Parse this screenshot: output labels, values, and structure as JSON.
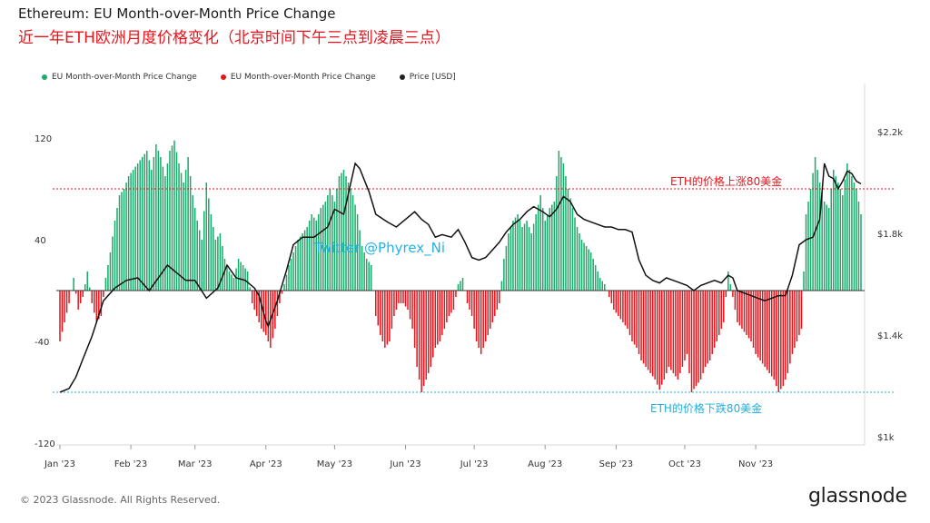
{
  "header": {
    "title": "Ethereum: EU Month-over-Month Price Change",
    "subtitle": "近一年ETH欧洲月度价格变化（北京时间下午三点到凌晨三点）"
  },
  "footer": {
    "copyright": "© 2023 Glassnode. All Rights Reserved.",
    "logo": "glassnode"
  },
  "colors": {
    "positive": "#1aaa6a",
    "negative": "#e8141b",
    "price": "#111111",
    "upper_line": "#e8141b",
    "lower_line": "#1fb0e0",
    "watermark": "#22b3e6"
  },
  "chart_data": {
    "type": "bar",
    "legend": [
      {
        "label": "EU Month-over-Month Price Change",
        "color": "#1aaa6a"
      },
      {
        "label": "EU Month-over-Month Price Change",
        "color": "#e8141b"
      },
      {
        "label": "Price [USD]",
        "color": "#222222"
      }
    ],
    "legend_placement": "top-left",
    "ylim_left": [
      -120,
      120
    ],
    "yticks_left": [
      "120",
      "40",
      "-40",
      "-120"
    ],
    "ylim_right": [
      1000,
      2200
    ],
    "yticks_right": [
      "$2.2k",
      "$1.8k",
      "$1.4k",
      "$1k"
    ],
    "x_labels": [
      "Jan '23",
      "Feb '23",
      "Mar '23",
      "Apr '23",
      "May '23",
      "Jun '23",
      "Jul '23",
      "Aug '23",
      "Sep '23",
      "Oct '23",
      "Nov '23"
    ],
    "x_range_days": [
      1,
      351
    ],
    "annotations": [
      {
        "text": "ETH的价格上涨80美金",
        "value": 80,
        "color": "#e8141b"
      },
      {
        "text": "ETH的价格下跌80美金",
        "value": -80,
        "color": "#1fb0e0"
      }
    ],
    "watermark": "Twitter @Phyrex_Ni",
    "series": [
      {
        "name": "EU Month-over-Month Price Change",
        "anchors": [
          [
            1,
            -40
          ],
          [
            3,
            -25
          ],
          [
            5,
            -10
          ],
          [
            7,
            10
          ],
          [
            9,
            -15
          ],
          [
            11,
            -5
          ],
          [
            13,
            15
          ],
          [
            15,
            -10
          ],
          [
            17,
            -25
          ],
          [
            19,
            -20
          ],
          [
            21,
            10
          ],
          [
            23,
            30
          ],
          [
            25,
            55
          ],
          [
            27,
            75
          ],
          [
            29,
            80
          ],
          [
            31,
            90
          ],
          [
            33,
            95
          ],
          [
            35,
            100
          ],
          [
            37,
            105
          ],
          [
            39,
            110
          ],
          [
            41,
            95
          ],
          [
            43,
            115
          ],
          [
            45,
            105
          ],
          [
            47,
            90
          ],
          [
            49,
            110
          ],
          [
            51,
            118
          ],
          [
            53,
            100
          ],
          [
            55,
            85
          ],
          [
            57,
            105
          ],
          [
            59,
            75
          ],
          [
            61,
            55
          ],
          [
            63,
            40
          ],
          [
            65,
            85
          ],
          [
            67,
            60
          ],
          [
            69,
            40
          ],
          [
            71,
            45
          ],
          [
            73,
            25
          ],
          [
            75,
            15
          ],
          [
            77,
            10
          ],
          [
            79,
            25
          ],
          [
            81,
            20
          ],
          [
            83,
            15
          ],
          [
            85,
            -10
          ],
          [
            87,
            -20
          ],
          [
            89,
            -30
          ],
          [
            91,
            -35
          ],
          [
            93,
            -45
          ],
          [
            95,
            -30
          ],
          [
            97,
            -10
          ],
          [
            99,
            5
          ],
          [
            101,
            20
          ],
          [
            103,
            30
          ],
          [
            105,
            40
          ],
          [
            107,
            45
          ],
          [
            109,
            50
          ],
          [
            111,
            60
          ],
          [
            113,
            55
          ],
          [
            115,
            65
          ],
          [
            117,
            70
          ],
          [
            119,
            80
          ],
          [
            121,
            70
          ],
          [
            123,
            90
          ],
          [
            125,
            95
          ],
          [
            127,
            85
          ],
          [
            129,
            75
          ],
          [
            131,
            60
          ],
          [
            133,
            35
          ],
          [
            135,
            25
          ],
          [
            137,
            20
          ],
          [
            139,
            -20
          ],
          [
            141,
            -35
          ],
          [
            143,
            -45
          ],
          [
            145,
            -40
          ],
          [
            147,
            -20
          ],
          [
            149,
            -10
          ],
          [
            151,
            -10
          ],
          [
            153,
            -15
          ],
          [
            155,
            -30
          ],
          [
            157,
            -60
          ],
          [
            159,
            -80
          ],
          [
            161,
            -70
          ],
          [
            163,
            -60
          ],
          [
            165,
            -45
          ],
          [
            167,
            -40
          ],
          [
            169,
            -30
          ],
          [
            171,
            -20
          ],
          [
            173,
            -15
          ],
          [
            175,
            5
          ],
          [
            177,
            10
          ],
          [
            179,
            -10
          ],
          [
            181,
            -20
          ],
          [
            183,
            -40
          ],
          [
            185,
            -50
          ],
          [
            187,
            -40
          ],
          [
            189,
            -30
          ],
          [
            191,
            -20
          ],
          [
            193,
            -10
          ],
          [
            195,
            25
          ],
          [
            197,
            45
          ],
          [
            199,
            55
          ],
          [
            201,
            60
          ],
          [
            203,
            50
          ],
          [
            205,
            55
          ],
          [
            207,
            45
          ],
          [
            209,
            60
          ],
          [
            211,
            75
          ],
          [
            213,
            55
          ],
          [
            215,
            65
          ],
          [
            217,
            70
          ],
          [
            219,
            110
          ],
          [
            221,
            100
          ],
          [
            223,
            80
          ],
          [
            225,
            65
          ],
          [
            227,
            50
          ],
          [
            229,
            40
          ],
          [
            231,
            35
          ],
          [
            233,
            30
          ],
          [
            235,
            20
          ],
          [
            237,
            10
          ],
          [
            239,
            5
          ],
          [
            241,
            -5
          ],
          [
            243,
            -15
          ],
          [
            245,
            -20
          ],
          [
            247,
            -25
          ],
          [
            249,
            -30
          ],
          [
            251,
            -40
          ],
          [
            253,
            -45
          ],
          [
            255,
            -55
          ],
          [
            257,
            -60
          ],
          [
            259,
            -65
          ],
          [
            261,
            -70
          ],
          [
            263,
            -78
          ],
          [
            265,
            -70
          ],
          [
            267,
            -60
          ],
          [
            269,
            -65
          ],
          [
            271,
            -70
          ],
          [
            273,
            -60
          ],
          [
            275,
            -50
          ],
          [
            277,
            -80
          ],
          [
            279,
            -75
          ],
          [
            281,
            -70
          ],
          [
            283,
            -60
          ],
          [
            285,
            -55
          ],
          [
            287,
            -45
          ],
          [
            289,
            -35
          ],
          [
            291,
            -25
          ],
          [
            293,
            15
          ],
          [
            295,
            -5
          ],
          [
            297,
            -25
          ],
          [
            299,
            -30
          ],
          [
            301,
            -35
          ],
          [
            303,
            -40
          ],
          [
            305,
            -50
          ],
          [
            307,
            -55
          ],
          [
            309,
            -60
          ],
          [
            311,
            -65
          ],
          [
            313,
            -70
          ],
          [
            315,
            -80
          ],
          [
            317,
            -75
          ],
          [
            319,
            -65
          ],
          [
            321,
            -50
          ],
          [
            323,
            -40
          ],
          [
            325,
            -30
          ],
          [
            327,
            60
          ],
          [
            329,
            80
          ],
          [
            331,
            105
          ],
          [
            333,
            85
          ],
          [
            335,
            70
          ],
          [
            337,
            65
          ],
          [
            339,
            95
          ],
          [
            341,
            85
          ],
          [
            343,
            75
          ],
          [
            345,
            100
          ],
          [
            347,
            90
          ],
          [
            349,
            80
          ],
          [
            351,
            60
          ]
        ]
      },
      {
        "name": "Price [USD]",
        "anchors": [
          [
            1,
            1200
          ],
          [
            5,
            1215
          ],
          [
            8,
            1260
          ],
          [
            11,
            1330
          ],
          [
            15,
            1420
          ],
          [
            20,
            1560
          ],
          [
            25,
            1610
          ],
          [
            30,
            1640
          ],
          [
            35,
            1650
          ],
          [
            40,
            1600
          ],
          [
            44,
            1650
          ],
          [
            48,
            1700
          ],
          [
            52,
            1670
          ],
          [
            56,
            1640
          ],
          [
            60,
            1640
          ],
          [
            65,
            1570
          ],
          [
            70,
            1610
          ],
          [
            74,
            1700
          ],
          [
            78,
            1650
          ],
          [
            82,
            1640
          ],
          [
            86,
            1610
          ],
          [
            88,
            1580
          ],
          [
            91,
            1480
          ],
          [
            92,
            1460
          ],
          [
            96,
            1560
          ],
          [
            100,
            1680
          ],
          [
            103,
            1780
          ],
          [
            107,
            1810
          ],
          [
            112,
            1810
          ],
          [
            115,
            1830
          ],
          [
            118,
            1850
          ],
          [
            121,
            1920
          ],
          [
            125,
            1900
          ],
          [
            128,
            2020
          ],
          [
            130,
            2100
          ],
          [
            132,
            2080
          ],
          [
            136,
            1990
          ],
          [
            139,
            1900
          ],
          [
            144,
            1870
          ],
          [
            148,
            1850
          ],
          [
            152,
            1880
          ],
          [
            156,
            1910
          ],
          [
            159,
            1880
          ],
          [
            162,
            1860
          ],
          [
            165,
            1810
          ],
          [
            168,
            1820
          ],
          [
            172,
            1810
          ],
          [
            175,
            1840
          ],
          [
            178,
            1790
          ],
          [
            181,
            1730
          ],
          [
            184,
            1720
          ],
          [
            187,
            1730
          ],
          [
            190,
            1760
          ],
          [
            193,
            1790
          ],
          [
            196,
            1830
          ],
          [
            199,
            1860
          ],
          [
            202,
            1880
          ],
          [
            205,
            1910
          ],
          [
            208,
            1930
          ],
          [
            212,
            1910
          ],
          [
            215,
            1890
          ],
          [
            218,
            1920
          ],
          [
            221,
            1970
          ],
          [
            224,
            1950
          ],
          [
            227,
            1900
          ],
          [
            230,
            1880
          ],
          [
            233,
            1870
          ],
          [
            236,
            1860
          ],
          [
            239,
            1850
          ],
          [
            242,
            1850
          ],
          [
            245,
            1840
          ],
          [
            248,
            1840
          ],
          [
            251,
            1830
          ],
          [
            254,
            1720
          ],
          [
            257,
            1660
          ],
          [
            260,
            1640
          ],
          [
            263,
            1630
          ],
          [
            266,
            1650
          ],
          [
            269,
            1640
          ],
          [
            272,
            1630
          ],
          [
            275,
            1620
          ],
          [
            278,
            1600
          ],
          [
            281,
            1620
          ],
          [
            284,
            1630
          ],
          [
            287,
            1640
          ],
          [
            290,
            1630
          ],
          [
            293,
            1660
          ],
          [
            295,
            1650
          ],
          [
            297,
            1600
          ],
          [
            300,
            1590
          ],
          [
            303,
            1580
          ],
          [
            306,
            1570
          ],
          [
            309,
            1560
          ],
          [
            312,
            1570
          ],
          [
            315,
            1580
          ],
          [
            318,
            1580
          ],
          [
            321,
            1660
          ],
          [
            324,
            1780
          ],
          [
            327,
            1800
          ],
          [
            330,
            1810
          ],
          [
            333,
            1880
          ],
          [
            335,
            2100
          ],
          [
            337,
            2050
          ],
          [
            339,
            2040
          ],
          [
            341,
            2000
          ],
          [
            343,
            2030
          ],
          [
            345,
            2070
          ],
          [
            347,
            2060
          ],
          [
            349,
            2030
          ],
          [
            351,
            2020
          ]
        ]
      }
    ]
  }
}
